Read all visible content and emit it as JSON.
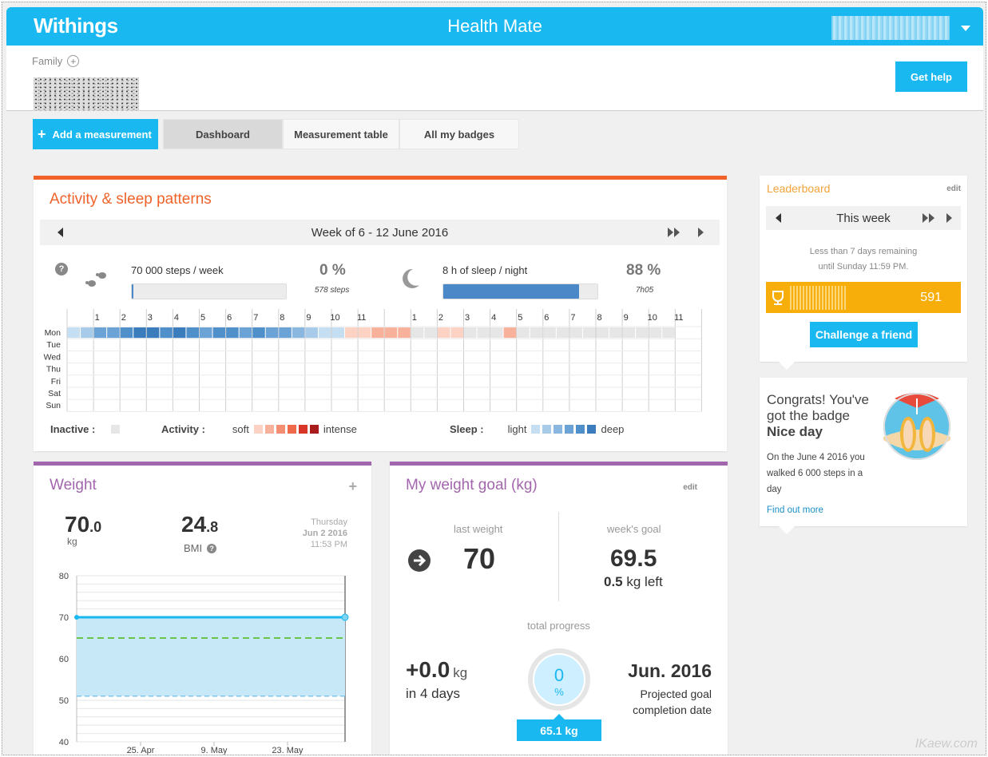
{
  "header": {
    "brand": "Withings",
    "app_title": "Health Mate"
  },
  "family": {
    "label": "Family",
    "add_icon": "plus-circle-icon"
  },
  "get_help": "Get help",
  "nav": {
    "add_measurement": "Add a measurement",
    "tabs": [
      {
        "label": "Dashboard",
        "active": true
      },
      {
        "label": "Measurement table",
        "active": false
      },
      {
        "label": "All my badges",
        "active": false
      }
    ]
  },
  "activity": {
    "title": "Activity & sleep patterns",
    "week": "Week of 6 - 12 June 2016",
    "steps": {
      "label": "70 000 steps / week",
      "percent": "0 %",
      "detail": "578 steps",
      "progress": 0.01
    },
    "sleep": {
      "label": "8 h of sleep / night",
      "percent": "88 %",
      "detail": "7h05",
      "progress": 0.88
    },
    "hours": [
      "1",
      "2",
      "3",
      "4",
      "5",
      "6",
      "7",
      "8",
      "9",
      "10",
      "11",
      "",
      "1",
      "2",
      "3",
      "4",
      "5",
      "6",
      "7",
      "8",
      "9",
      "10",
      "11"
    ],
    "days": [
      "Mon",
      "Tue",
      "Wed",
      "Thu",
      "Fri",
      "Sat",
      "Sun"
    ],
    "legend": {
      "inactive": "Inactive :",
      "activity": "Activity :",
      "soft": "soft",
      "intense": "intense",
      "sleep": "Sleep :",
      "light": "light",
      "deep": "deep"
    },
    "colors": {
      "inactive": "#e6e6e6",
      "activity_scale": [
        "#fbd2c4",
        "#f8b29c",
        "#f48e72",
        "#ef6a4a",
        "#d9362a",
        "#a81c1c"
      ],
      "sleep_scale": [
        "#c6def2",
        "#a9cbea",
        "#8ab7e0",
        "#6ca3d6",
        "#4f8fca",
        "#3a7cbc"
      ]
    }
  },
  "weight": {
    "title": "Weight",
    "add_icon": "plus-icon",
    "value_int": "70",
    "value_dec": ".0",
    "unit": "kg",
    "bmi_int": "24",
    "bmi_dec": ".8",
    "bmi_label": "BMI",
    "date_day": "Thursday",
    "date": "Jun 2 2016",
    "time": "11:53 PM",
    "chart_data": {
      "type": "line",
      "y_ticks": [
        "80",
        "70",
        "60",
        "50",
        "40"
      ],
      "ylim": [
        40,
        80
      ],
      "x_ticks": [
        "25. Apr",
        "9. May",
        "23. May"
      ],
      "series": [
        {
          "values": [
            70,
            70
          ]
        }
      ],
      "goal_line": 65,
      "lower_band": 51
    }
  },
  "goal": {
    "title": "My weight goal (kg)",
    "edit": "edit",
    "last_weight_label": "last weight",
    "last_weight": "70",
    "weeks_goal_label": "week's goal",
    "weeks_goal": "69.5",
    "kg_left_value": "0.5",
    "kg_left_text": " kg left",
    "total_progress_label": "total progress",
    "change": "+0.0",
    "change_unit": "kg",
    "change_period": "in 4 days",
    "progress_percent": "0",
    "progress_symbol": "%",
    "target_weight": "65.1 kg",
    "projected_date": "Jun. 2016",
    "projected_label_1": "Projected goal",
    "projected_label_2": "completion date"
  },
  "leaderboard": {
    "title": "Leaderboard",
    "edit": "edit",
    "period": "This week",
    "remaining_1": "Less than 7 days remaining",
    "remaining_2": "until Sunday 11:59 PM.",
    "score": "591",
    "challenge": "Challenge a friend"
  },
  "badge": {
    "line1": "Congrats! You've",
    "line2": "got the badge",
    "name": "Nice day",
    "desc1": "On the June 4 2016 you",
    "desc2": "walked 6 000 steps in a",
    "desc3": "day",
    "link": "Find out more"
  },
  "watermark": "IKaew.com"
}
